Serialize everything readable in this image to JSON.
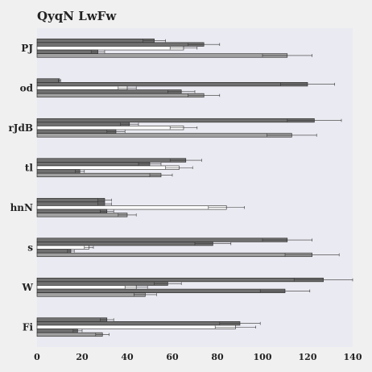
{
  "chart_data": {
    "type": "bar",
    "orientation": "horizontal",
    "title": "QyqN LwFw",
    "xlabel": "",
    "ylabel": "",
    "xlim": [
      0,
      140
    ],
    "x_ticks": [
      0,
      20,
      40,
      60,
      80,
      100,
      120,
      140
    ],
    "grid": false,
    "legend": "none",
    "categories": [
      "PJ",
      "od",
      "rJdB",
      "tl",
      "hnN",
      "s",
      "W",
      "Fi"
    ],
    "series": [
      {
        "color": "#707070",
        "values": [
          52,
          10,
          123,
          66,
          30,
          111,
          127,
          31
        ],
        "errors": [
          5,
          0.5,
          12,
          7,
          3,
          11,
          13,
          3
        ]
      },
      {
        "color": "#707070",
        "values": [
          74,
          120,
          41,
          50,
          30,
          78,
          58,
          90
        ],
        "errors": [
          7,
          12,
          4,
          5,
          3,
          8,
          6,
          9
        ]
      },
      {
        "color": "#ffffff",
        "values": [
          65,
          40,
          65,
          63,
          84,
          23,
          44,
          88
        ],
        "errors": [
          6,
          4,
          6,
          6,
          8,
          2,
          5,
          9
        ]
      },
      {
        "color": "#707070",
        "values": [
          27,
          64,
          35,
          19,
          31,
          15,
          110,
          18
        ],
        "errors": [
          3,
          6,
          4,
          2,
          3,
          1.5,
          11,
          2
        ]
      },
      {
        "color": "#a0a0a0",
        "values": [
          111,
          74,
          113,
          55,
          40,
          122,
          48,
          29
        ],
        "errors": [
          11,
          7,
          11,
          5,
          4,
          12,
          5,
          3
        ]
      }
    ]
  }
}
